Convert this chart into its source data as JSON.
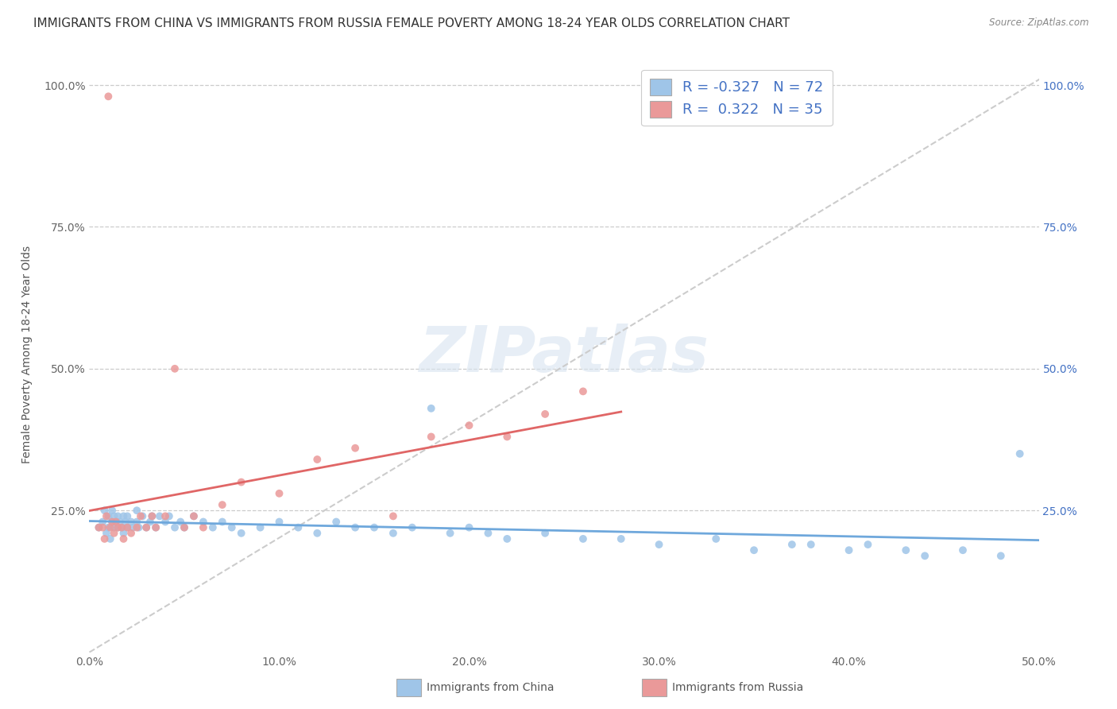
{
  "title": "IMMIGRANTS FROM CHINA VS IMMIGRANTS FROM RUSSIA FEMALE POVERTY AMONG 18-24 YEAR OLDS CORRELATION CHART",
  "source": "Source: ZipAtlas.com",
  "ylabel": "Female Poverty Among 18-24 Year Olds",
  "xlim": [
    0.0,
    0.5
  ],
  "ylim": [
    0.0,
    1.05
  ],
  "xtick_vals": [
    0.0,
    0.1,
    0.2,
    0.3,
    0.4,
    0.5
  ],
  "xtick_labels": [
    "0.0%",
    "10.0%",
    "20.0%",
    "30.0%",
    "40.0%",
    "50.0%"
  ],
  "ytick_vals": [
    0.25,
    0.5,
    0.75,
    1.0
  ],
  "ytick_labels": [
    "25.0%",
    "50.0%",
    "75.0%",
    "100.0%"
  ],
  "china_color": "#9fc5e8",
  "russia_color": "#ea9999",
  "china_line_color": "#6fa8dc",
  "russia_line_color": "#e06666",
  "diagonal_color": "#cccccc",
  "R_china": -0.327,
  "N_china": 72,
  "R_russia": 0.322,
  "N_russia": 35,
  "legend_label_china": "Immigrants from China",
  "legend_label_russia": "Immigrants from Russia",
  "watermark": "ZIPatlas",
  "background_color": "#ffffff",
  "title_fontsize": 11,
  "axis_label_fontsize": 10,
  "tick_fontsize": 10,
  "legend_fontsize": 13,
  "china_x": [
    0.005,
    0.007,
    0.008,
    0.009,
    0.01,
    0.01,
    0.011,
    0.012,
    0.012,
    0.013,
    0.013,
    0.014,
    0.015,
    0.015,
    0.016,
    0.017,
    0.018,
    0.018,
    0.019,
    0.02,
    0.02,
    0.022,
    0.023,
    0.025,
    0.025,
    0.026,
    0.028,
    0.03,
    0.032,
    0.033,
    0.035,
    0.037,
    0.04,
    0.042,
    0.045,
    0.048,
    0.05,
    0.055,
    0.06,
    0.065,
    0.07,
    0.075,
    0.08,
    0.09,
    0.1,
    0.11,
    0.12,
    0.13,
    0.14,
    0.15,
    0.16,
    0.17,
    0.18,
    0.19,
    0.2,
    0.21,
    0.22,
    0.24,
    0.26,
    0.28,
    0.3,
    0.33,
    0.35,
    0.37,
    0.38,
    0.4,
    0.41,
    0.43,
    0.44,
    0.46,
    0.48,
    0.49
  ],
  "china_y": [
    0.22,
    0.23,
    0.25,
    0.21,
    0.24,
    0.22,
    0.2,
    0.23,
    0.25,
    0.22,
    0.24,
    0.23,
    0.22,
    0.24,
    0.23,
    0.22,
    0.21,
    0.24,
    0.23,
    0.22,
    0.24,
    0.23,
    0.22,
    0.23,
    0.25,
    0.22,
    0.24,
    0.22,
    0.23,
    0.24,
    0.22,
    0.24,
    0.23,
    0.24,
    0.22,
    0.23,
    0.22,
    0.24,
    0.23,
    0.22,
    0.23,
    0.22,
    0.21,
    0.22,
    0.23,
    0.22,
    0.21,
    0.23,
    0.22,
    0.22,
    0.21,
    0.22,
    0.43,
    0.21,
    0.22,
    0.21,
    0.2,
    0.21,
    0.2,
    0.2,
    0.19,
    0.2,
    0.18,
    0.19,
    0.19,
    0.18,
    0.19,
    0.18,
    0.17,
    0.18,
    0.17,
    0.35
  ],
  "russia_x": [
    0.005,
    0.007,
    0.008,
    0.009,
    0.01,
    0.011,
    0.012,
    0.013,
    0.014,
    0.015,
    0.017,
    0.018,
    0.02,
    0.022,
    0.025,
    0.027,
    0.03,
    0.033,
    0.035,
    0.04,
    0.045,
    0.05,
    0.055,
    0.06,
    0.07,
    0.08,
    0.1,
    0.12,
    0.14,
    0.16,
    0.18,
    0.2,
    0.22,
    0.24,
    0.26
  ],
  "russia_y": [
    0.22,
    0.22,
    0.2,
    0.24,
    0.98,
    0.22,
    0.23,
    0.21,
    0.23,
    0.22,
    0.22,
    0.2,
    0.22,
    0.21,
    0.22,
    0.24,
    0.22,
    0.24,
    0.22,
    0.24,
    0.5,
    0.22,
    0.24,
    0.22,
    0.26,
    0.3,
    0.28,
    0.34,
    0.36,
    0.24,
    0.38,
    0.4,
    0.38,
    0.42,
    0.46
  ]
}
